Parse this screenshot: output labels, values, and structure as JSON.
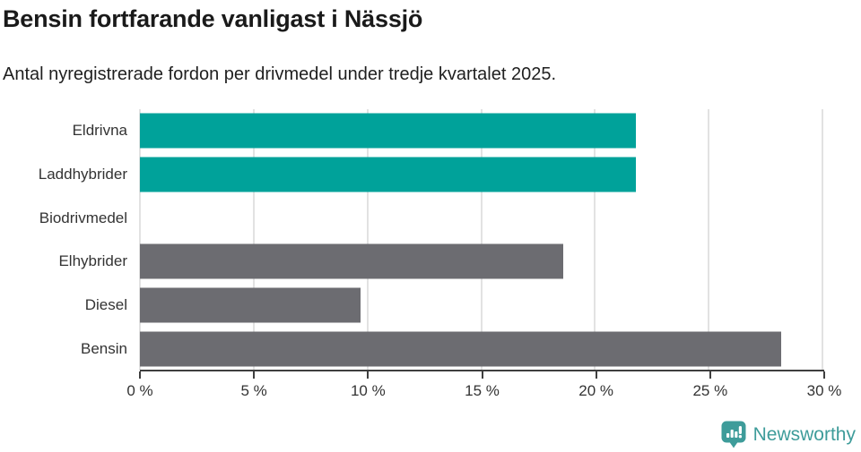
{
  "header": {
    "title": "Bensin fortfarande vanligast i Nässjö",
    "subtitle": "Antal nyregistrerade fordon per drivmedel under tredje kvartalet 2025."
  },
  "chart_data": {
    "type": "bar",
    "orientation": "horizontal",
    "title": "Bensin fortfarande vanligast i Nässjö",
    "subtitle": "Antal nyregistrerade fordon per drivmedel under tredje kvartalet 2025.",
    "categories": [
      "Eldrivna",
      "Laddhybrider",
      "Biodrivmedel",
      "Elhybrider",
      "Diesel",
      "Bensin"
    ],
    "values": [
      21.8,
      21.8,
      0,
      18.6,
      9.7,
      28.2
    ],
    "unit": "%",
    "bar_colors": [
      "#00a29a",
      "#00a29a",
      "#6c6c71",
      "#6c6c71",
      "#6c6c71",
      "#6c6c71"
    ],
    "xlim": [
      0,
      30
    ],
    "x_ticks": [
      0,
      5,
      10,
      15,
      20,
      25,
      30
    ],
    "x_tick_labels": [
      "0 %",
      "5 %",
      "10 %",
      "15 %",
      "20 %",
      "25 %",
      "30 %"
    ],
    "grid": true,
    "legend": "none"
  },
  "colors": {
    "highlight_teal": "#00a29a",
    "bar_gray": "#6c6c71",
    "grid": "#e2e2e2",
    "axis": "#3f3f3f",
    "brand_teal": "#3e9c9a"
  },
  "footer": {
    "brand": "Newsworthy"
  },
  "icons": {
    "logo": "newsworthy-speech-bubble-bar-chart-icon"
  }
}
